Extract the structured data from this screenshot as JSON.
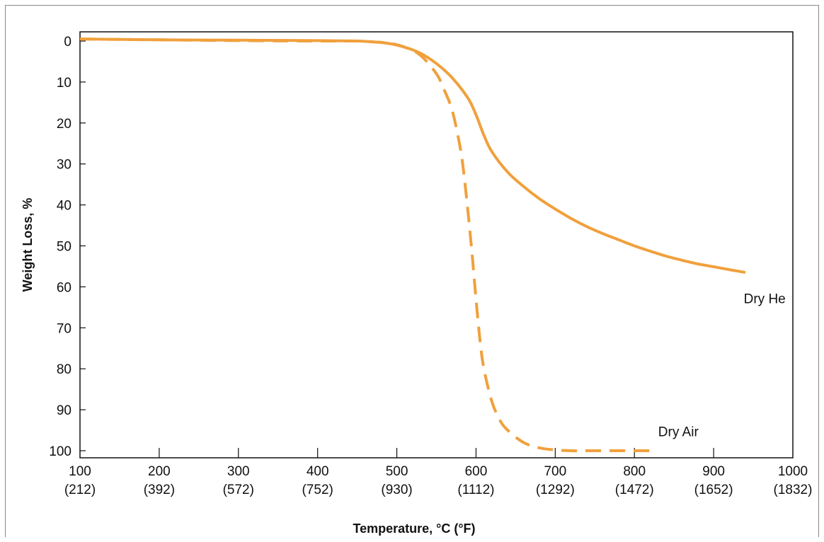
{
  "chart_data": {
    "type": "line",
    "title": "",
    "xlabel": "Temperature, °C (°F)",
    "ylabel": "Weight Loss, %",
    "xlim": [
      100,
      1000
    ],
    "ylim": [
      0,
      100
    ],
    "y_inverted": true,
    "grid": false,
    "x_ticks": [
      {
        "value": 100,
        "label": "100",
        "sublabel": "(212)"
      },
      {
        "value": 200,
        "label": "200",
        "sublabel": "(392)"
      },
      {
        "value": 300,
        "label": "300",
        "sublabel": "(572)"
      },
      {
        "value": 400,
        "label": "400",
        "sublabel": "(752)"
      },
      {
        "value": 500,
        "label": "500",
        "sublabel": "(930)"
      },
      {
        "value": 600,
        "label": "600",
        "sublabel": "(1112)"
      },
      {
        "value": 700,
        "label": "700",
        "sublabel": "(1292)"
      },
      {
        "value": 800,
        "label": "800",
        "sublabel": "(1472)"
      },
      {
        "value": 900,
        "label": "900",
        "sublabel": "(1652)"
      },
      {
        "value": 1000,
        "label": "1000",
        "sublabel": "(1832)"
      }
    ],
    "y_ticks": [
      {
        "value": 0,
        "label": "0"
      },
      {
        "value": 10,
        "label": "10"
      },
      {
        "value": 20,
        "label": "20"
      },
      {
        "value": 30,
        "label": "30"
      },
      {
        "value": 40,
        "label": "40"
      },
      {
        "value": 50,
        "label": "50"
      },
      {
        "value": 60,
        "label": "60"
      },
      {
        "value": 70,
        "label": "70"
      },
      {
        "value": 80,
        "label": "80"
      },
      {
        "value": 90,
        "label": "90"
      },
      {
        "value": 100,
        "label": "100"
      }
    ],
    "series": [
      {
        "name": "Dry He",
        "color": "#f0a03c",
        "style": "solid",
        "label_anchor": {
          "x": 938,
          "y": 64
        },
        "x": [
          100,
          200,
          300,
          400,
          450,
          470,
          490,
          510,
          530,
          550,
          570,
          590,
          600,
          610,
          620,
          640,
          660,
          680,
          700,
          720,
          740,
          760,
          780,
          800,
          820,
          840,
          860,
          880,
          900,
          920,
          940
        ],
        "y": [
          -0.5,
          -0.3,
          -0.2,
          -0.1,
          0,
          0.2,
          0.6,
          1.5,
          3,
          5.5,
          9,
          14,
          18,
          23,
          27,
          32,
          35.5,
          38.5,
          41,
          43.3,
          45.3,
          47,
          48.5,
          50,
          51.3,
          52.5,
          53.5,
          54.4,
          55.1,
          55.8,
          56.5
        ]
      },
      {
        "name": "Dry Air",
        "color": "#f0a03c",
        "style": "dashed",
        "label_anchor": {
          "x": 830,
          "y": 96.5
        },
        "x": [
          100,
          200,
          300,
          400,
          450,
          470,
          490,
          510,
          530,
          550,
          560,
          570,
          580,
          585,
          590,
          595,
          600,
          605,
          610,
          620,
          630,
          640,
          660,
          680,
          700,
          720,
          740,
          760,
          780,
          800,
          820,
          826
        ],
        "y": [
          -0.5,
          -0.3,
          -0.1,
          0,
          0,
          0.2,
          0.5,
          1.5,
          3.5,
          8,
          12,
          17,
          26,
          33,
          42,
          52,
          63,
          73,
          80,
          88,
          92.5,
          95,
          98,
          99.3,
          99.8,
          100,
          100,
          100,
          100,
          100,
          100,
          100
        ]
      }
    ]
  }
}
